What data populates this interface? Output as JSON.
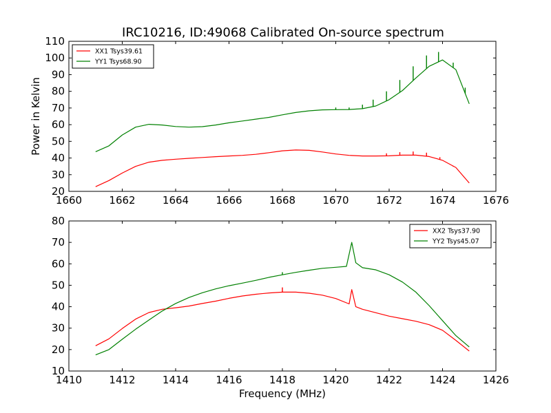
{
  "figure": {
    "title": "IRC10216, ID:49068 Calibrated On-source spectrum",
    "ylabel": "Power in Kelvin",
    "xlabel": "Frequency (MHz)"
  },
  "chart_data": [
    {
      "type": "line",
      "title": "IRC10216, ID:49068 Calibrated On-source spectrum",
      "xlabel": "",
      "ylabel": "Power in Kelvin",
      "xlim": [
        1660,
        1676
      ],
      "ylim": [
        20,
        110
      ],
      "xticks": [
        1660,
        1662,
        1664,
        1666,
        1668,
        1670,
        1672,
        1674,
        1676
      ],
      "yticks": [
        20,
        30,
        40,
        50,
        60,
        70,
        80,
        90,
        100,
        110
      ],
      "grid": false,
      "legend_position": "top-left",
      "series": [
        {
          "name": "XX1 Tsys39.61",
          "color": "#ff0000",
          "points": [
            [
              1661.0,
              22.8
            ],
            [
              1661.5,
              26.5
            ],
            [
              1662.0,
              31.0
            ],
            [
              1662.5,
              35.0
            ],
            [
              1663.0,
              37.5
            ],
            [
              1663.5,
              38.6
            ],
            [
              1664.0,
              39.3
            ],
            [
              1664.5,
              39.8
            ],
            [
              1665.0,
              40.3
            ],
            [
              1665.5,
              40.8
            ],
            [
              1666.0,
              41.2
            ],
            [
              1666.5,
              41.6
            ],
            [
              1667.0,
              42.2
            ],
            [
              1667.5,
              43.2
            ],
            [
              1668.0,
              44.3
            ],
            [
              1668.5,
              44.8
            ],
            [
              1669.0,
              44.6
            ],
            [
              1669.5,
              43.6
            ],
            [
              1670.0,
              42.4
            ],
            [
              1670.5,
              41.6
            ],
            [
              1671.0,
              41.2
            ],
            [
              1671.5,
              41.2
            ],
            [
              1672.0,
              41.3
            ],
            [
              1672.5,
              41.7
            ],
            [
              1673.0,
              41.7
            ],
            [
              1673.5,
              40.9
            ],
            [
              1674.0,
              38.6
            ],
            [
              1674.5,
              34.3
            ],
            [
              1675.0,
              25.0
            ]
          ],
          "spikes": [
            [
              1671.9,
              42.8
            ],
            [
              1672.4,
              43.5
            ],
            [
              1672.9,
              43.9
            ],
            [
              1673.4,
              43.2
            ],
            [
              1673.9,
              40.5
            ],
            [
              1674.4,
              34.8
            ],
            [
              1674.8,
              28.6
            ]
          ]
        },
        {
          "name": "YY1 Tsys68.90",
          "color": "#008000",
          "points": [
            [
              1661.0,
              43.8
            ],
            [
              1661.5,
              47.3
            ],
            [
              1662.0,
              53.8
            ],
            [
              1662.5,
              58.5
            ],
            [
              1663.0,
              60.2
            ],
            [
              1663.5,
              59.8
            ],
            [
              1664.0,
              58.9
            ],
            [
              1664.5,
              58.5
            ],
            [
              1665.0,
              58.8
            ],
            [
              1665.5,
              59.8
            ],
            [
              1666.0,
              61.1
            ],
            [
              1666.5,
              62.2
            ],
            [
              1667.0,
              63.3
            ],
            [
              1667.5,
              64.4
            ],
            [
              1668.0,
              65.9
            ],
            [
              1668.5,
              67.3
            ],
            [
              1669.0,
              68.3
            ],
            [
              1669.5,
              68.9
            ],
            [
              1670.0,
              69.0
            ],
            [
              1670.5,
              69.1
            ],
            [
              1671.0,
              69.6
            ],
            [
              1671.5,
              71.2
            ],
            [
              1672.0,
              75.0
            ],
            [
              1672.5,
              80.5
            ],
            [
              1673.0,
              88.0
            ],
            [
              1673.5,
              95.0
            ],
            [
              1674.0,
              98.8
            ],
            [
              1674.5,
              93.0
            ],
            [
              1675.0,
              72.5
            ]
          ],
          "spikes": [
            [
              1670.0,
              70.3
            ],
            [
              1670.5,
              70.3
            ],
            [
              1671.0,
              72.0
            ],
            [
              1671.4,
              75.0
            ],
            [
              1671.9,
              80.0
            ],
            [
              1672.4,
              86.8
            ],
            [
              1672.9,
              95.0
            ],
            [
              1673.4,
              101.5
            ],
            [
              1673.85,
              103.6
            ],
            [
              1674.4,
              97.2
            ],
            [
              1674.85,
              82.2
            ]
          ]
        }
      ]
    },
    {
      "type": "line",
      "title": "",
      "xlabel": "Frequency (MHz)",
      "ylabel": "",
      "xlim": [
        1410,
        1426
      ],
      "ylim": [
        10,
        80
      ],
      "xticks": [
        1410,
        1412,
        1414,
        1416,
        1418,
        1420,
        1422,
        1424,
        1426
      ],
      "yticks": [
        10,
        20,
        30,
        40,
        50,
        60,
        70,
        80
      ],
      "grid": false,
      "legend_position": "top-right",
      "series": [
        {
          "name": "XX2 Tsys37.90",
          "color": "#ff0000",
          "points": [
            [
              1411.0,
              21.8
            ],
            [
              1411.5,
              25.0
            ],
            [
              1412.0,
              29.8
            ],
            [
              1412.5,
              34.2
            ],
            [
              1413.0,
              37.3
            ],
            [
              1413.5,
              38.8
            ],
            [
              1414.0,
              39.5
            ],
            [
              1414.5,
              40.3
            ],
            [
              1415.0,
              41.5
            ],
            [
              1415.5,
              42.6
            ],
            [
              1416.0,
              43.9
            ],
            [
              1416.5,
              45.0
            ],
            [
              1417.0,
              45.8
            ],
            [
              1417.5,
              46.4
            ],
            [
              1418.0,
              46.8
            ],
            [
              1418.5,
              46.8
            ],
            [
              1419.0,
              46.3
            ],
            [
              1419.5,
              45.4
            ],
            [
              1420.0,
              43.8
            ],
            [
              1420.5,
              41.3
            ],
            [
              1420.6,
              48.0
            ],
            [
              1420.75,
              40.0
            ],
            [
              1421.0,
              38.8
            ],
            [
              1421.5,
              37.2
            ],
            [
              1422.0,
              35.6
            ],
            [
              1422.5,
              34.4
            ],
            [
              1423.0,
              33.2
            ],
            [
              1423.5,
              31.6
            ],
            [
              1424.0,
              29.0
            ],
            [
              1424.5,
              24.3
            ],
            [
              1425.0,
              19.3
            ]
          ],
          "spikes": [
            [
              1418.0,
              49.0
            ]
          ]
        },
        {
          "name": "YY2 Tsys45.07",
          "color": "#008000",
          "points": [
            [
              1411.0,
              17.5
            ],
            [
              1411.5,
              20.0
            ],
            [
              1412.0,
              24.8
            ],
            [
              1412.5,
              29.5
            ],
            [
              1413.0,
              33.8
            ],
            [
              1413.5,
              38.0
            ],
            [
              1414.0,
              41.5
            ],
            [
              1414.5,
              44.3
            ],
            [
              1415.0,
              46.5
            ],
            [
              1415.5,
              48.3
            ],
            [
              1416.0,
              49.8
            ],
            [
              1416.5,
              51.0
            ],
            [
              1417.0,
              52.3
            ],
            [
              1417.5,
              53.7
            ],
            [
              1418.0,
              54.9
            ],
            [
              1418.5,
              56.0
            ],
            [
              1419.0,
              57.0
            ],
            [
              1419.5,
              57.9
            ],
            [
              1420.0,
              58.4
            ],
            [
              1420.4,
              58.8
            ],
            [
              1420.6,
              70.0
            ],
            [
              1420.75,
              60.5
            ],
            [
              1421.0,
              58.2
            ],
            [
              1421.5,
              57.2
            ],
            [
              1422.0,
              54.9
            ],
            [
              1422.5,
              51.5
            ],
            [
              1423.0,
              46.8
            ],
            [
              1423.5,
              40.5
            ],
            [
              1424.0,
              33.5
            ],
            [
              1424.5,
              26.5
            ],
            [
              1425.0,
              21.2
            ]
          ],
          "spikes": [
            [
              1418.0,
              56.1
            ]
          ]
        }
      ]
    }
  ]
}
